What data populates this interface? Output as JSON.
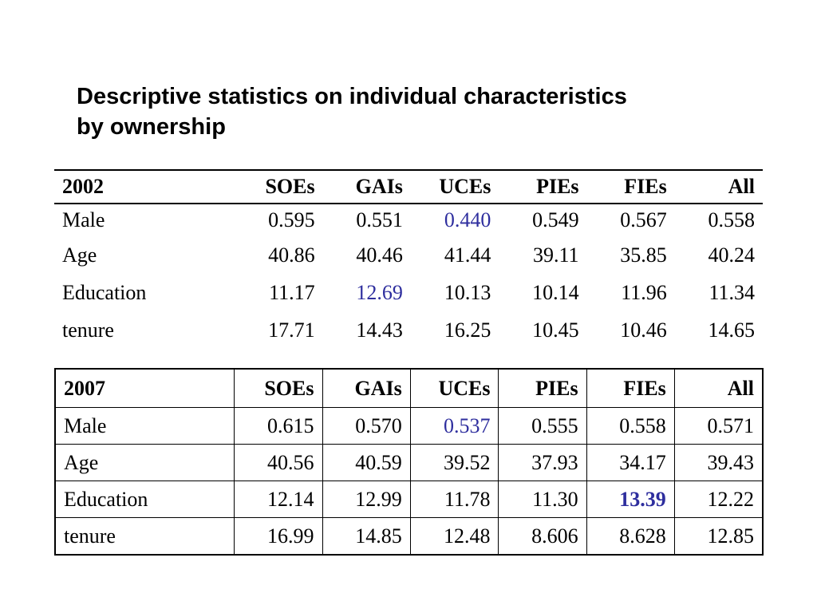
{
  "title": {
    "line1": "Descriptive statistics on individual characteristics",
    "line2": "by ownership"
  },
  "table_2002": {
    "headers": [
      "2002",
      "SOEs",
      "GAIs",
      "UCEs",
      "PIEs",
      "FIEs",
      "All"
    ],
    "rows": [
      [
        "Male",
        "0.595",
        "0.551",
        "0.440",
        "0.549",
        "0.567",
        "0.558"
      ],
      [
        "Age",
        "40.86",
        "40.46",
        "41.44",
        "39.11",
        "35.85",
        "40.24"
      ],
      [
        "Education",
        "11.17",
        "12.69",
        "10.13",
        "10.14",
        "11.96",
        "11.34"
      ],
      [
        "tenure",
        "17.71",
        "14.43",
        "16.25",
        "10.45",
        "10.46",
        "14.65"
      ]
    ],
    "highlighted_cells": [
      [
        "Male",
        "UCEs"
      ],
      [
        "Education",
        "GAIs"
      ]
    ]
  },
  "table_2007": {
    "headers": [
      "2007",
      "SOEs",
      "GAIs",
      "UCEs",
      "PIEs",
      "FIEs",
      "All"
    ],
    "rows": [
      [
        "Male",
        "0.615",
        "0.570",
        "0.537",
        "0.555",
        "0.558",
        "0.571"
      ],
      [
        "Age",
        "40.56",
        "40.59",
        "39.52",
        "37.93",
        "34.17",
        "39.43"
      ],
      [
        "Education",
        "12.14",
        "12.99",
        "11.78",
        "11.30",
        "13.39",
        "12.22"
      ],
      [
        "tenure",
        "16.99",
        "14.85",
        "12.48",
        "8.606",
        "8.628",
        "12.85"
      ]
    ],
    "highlighted_cells": [
      [
        "Male",
        "UCEs"
      ],
      [
        "Education",
        "FIEs"
      ]
    ]
  },
  "colors": {
    "highlight": "#2e2e9e",
    "text": "#000000",
    "background": "#ffffff"
  }
}
